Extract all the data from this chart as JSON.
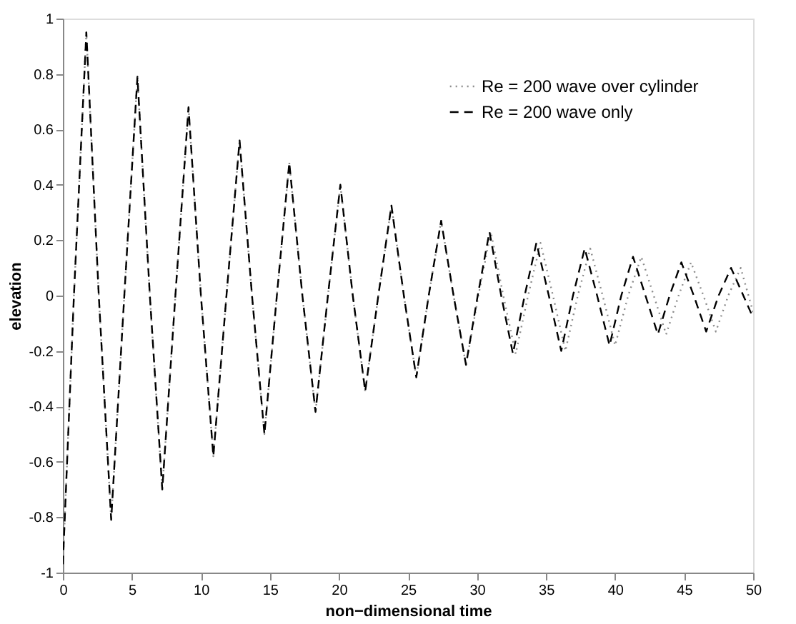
{
  "chart_data": {
    "type": "line",
    "xlabel": "non−dimensional time",
    "ylabel": "elevation",
    "xlim": [
      0,
      50
    ],
    "xticks": [
      0,
      5,
      10,
      15,
      20,
      25,
      30,
      35,
      40,
      45,
      50
    ],
    "ylim": [
      -1,
      1
    ],
    "yticks": [
      -1,
      -0.8,
      -0.6,
      -0.4,
      -0.2,
      0,
      0.2,
      0.4,
      0.6,
      0.8,
      1
    ],
    "grid": false,
    "legend": "top right",
    "series": [
      {
        "name": "Re = 200 wave over cylinder",
        "color": "#8c8c8c",
        "line_style": "dotted",
        "x": [
          0,
          0.8,
          1.7,
          2.6,
          3.5,
          4.45,
          5.4,
          6.3,
          7.2,
          8.15,
          9.1,
          10.0,
          10.9,
          11.85,
          12.8,
          13.7,
          14.6,
          15.5,
          16.4,
          17.35,
          18.3,
          19.2,
          20.1,
          21.0,
          21.9,
          22.85,
          23.8,
          24.7,
          25.6,
          26.5,
          27.4,
          28.3,
          29.2,
          30.1,
          31.0,
          31.9,
          32.8,
          33.7,
          34.6,
          35.5,
          36.4,
          37.3,
          38.2,
          39.1,
          40.0,
          40.95,
          41.9,
          42.8,
          43.7,
          44.6,
          45.5,
          46.4,
          47.3,
          48.2,
          49.1,
          50
        ],
        "values": [
          -0.97,
          0,
          0.95,
          0,
          -0.81,
          0,
          0.79,
          0,
          -0.7,
          0,
          0.68,
          0,
          -0.58,
          0,
          0.56,
          0,
          -0.5,
          0,
          0.48,
          0,
          -0.42,
          0,
          0.4,
          0,
          -0.345,
          0,
          0.325,
          0,
          -0.295,
          0,
          0.27,
          0,
          -0.25,
          0,
          0.23,
          0,
          -0.21,
          0,
          0.19,
          0,
          -0.2,
          0,
          0.17,
          0,
          -0.18,
          0,
          0.14,
          0,
          -0.14,
          0,
          0.12,
          0,
          -0.13,
          0,
          0.1,
          -0.06
        ]
      },
      {
        "name": "Re = 200 wave only",
        "color": "#000000",
        "line_style": "dashed",
        "x": [
          0,
          0.8,
          1.7,
          2.6,
          3.5,
          4.45,
          5.4,
          6.3,
          7.2,
          8.15,
          9.1,
          10.0,
          10.9,
          11.85,
          12.8,
          13.7,
          14.6,
          15.5,
          16.4,
          17.35,
          18.3,
          19.2,
          20.1,
          21.0,
          21.9,
          22.85,
          23.8,
          24.7,
          25.6,
          26.5,
          27.4,
          28.3,
          29.2,
          30.05,
          30.9,
          31.75,
          32.6,
          33.45,
          34.3,
          35.2,
          36.1,
          36.95,
          37.8,
          38.7,
          39.6,
          40.45,
          41.3,
          42.2,
          43.1,
          43.95,
          44.8,
          45.7,
          46.6,
          47.5,
          48.4,
          50
        ],
        "values": [
          -0.97,
          0,
          0.95,
          0,
          -0.81,
          0,
          0.79,
          0,
          -0.7,
          0,
          0.68,
          0,
          -0.58,
          0,
          0.56,
          0,
          -0.5,
          0,
          0.48,
          0,
          -0.42,
          0,
          0.4,
          0,
          -0.345,
          0,
          0.325,
          0,
          -0.295,
          0,
          0.27,
          0,
          -0.25,
          0,
          0.23,
          0,
          -0.21,
          0,
          0.19,
          0,
          -0.2,
          0,
          0.17,
          0,
          -0.18,
          0,
          0.14,
          0,
          -0.14,
          0,
          0.12,
          0,
          -0.13,
          0,
          0.1,
          -0.08
        ]
      }
    ]
  }
}
